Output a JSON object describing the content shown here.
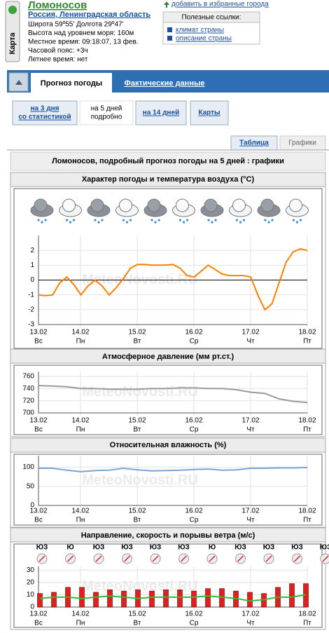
{
  "header": {
    "map_button": "Карта",
    "city": "Ломоносов",
    "region": "Россия, Ленинградская область",
    "info": [
      "Широта 59º55'  Долгота 29º47'",
      "Высота над уровнем моря: 160м",
      "Местное время: 09:18:07, 13 фев.",
      "Часовой пояс: +3ч",
      "Летнее время: нет"
    ],
    "favorites": "добавить в избранные города",
    "links": {
      "title": "Полезные ссылки:",
      "items": [
        "климат страны",
        "описание страны"
      ]
    }
  },
  "tabs": [
    "Прогноз погоды",
    "Фактические данные"
  ],
  "forecast_buttons": [
    {
      "lines": [
        "на 3 дня",
        "со статистикой"
      ]
    },
    {
      "lines": [
        "на 5 дней",
        "подробно"
      ]
    },
    {
      "lines": [
        "на 14 дней"
      ]
    },
    {
      "lines": [
        "Карты"
      ]
    }
  ],
  "view_tabs": [
    "Таблица",
    "Графики"
  ],
  "heading": "Ломоносов, подробный прогноз погоды на 5 дней : графики",
  "watermark": "MeteoNovosti.RU",
  "dates": [
    "13.02",
    "14.02",
    "15.02",
    "16.02",
    "17.02",
    "18.02"
  ],
  "weekdays": [
    "Вс",
    "Пн",
    "Вт",
    "Ср",
    "Чт",
    "Пт"
  ],
  "charts": [
    {
      "type": "line",
      "title": "Характер погоды и температура воздуха (°C)",
      "ylim": [
        -3,
        3
      ],
      "yticks": [
        -3,
        -2,
        -1,
        0,
        1,
        2
      ],
      "zero_line": true,
      "color": "#ff8000",
      "values": [
        -1.0,
        -1.05,
        -1.0,
        -0.2,
        0.2,
        -0.3,
        -1.0,
        -0.4,
        0.0,
        -0.4,
        -1.0,
        -0.5,
        0.1,
        0.8,
        1.05,
        1.05,
        1.0,
        1.0,
        1.0,
        1.05,
        0.8,
        0.3,
        0.2,
        0.6,
        1.0,
        0.7,
        0.4,
        0.3,
        0.3,
        0.3,
        0.2,
        -1.0,
        -2.0,
        -1.6,
        -0.2,
        1.2,
        1.9,
        2.1,
        2.0
      ]
    },
    {
      "type": "line",
      "title": "Атмосферное давление (мм рт.ст.)",
      "ylim": [
        700,
        768
      ],
      "yticks": [
        700,
        720,
        740,
        760
      ],
      "color": "#9a9a9a",
      "values": [
        745,
        744,
        743,
        740,
        740,
        739,
        739,
        739,
        740,
        740,
        741,
        741,
        740,
        740,
        738,
        734,
        732,
        723,
        719,
        717
      ]
    },
    {
      "type": "line",
      "title": "Относительная влажность (%)",
      "ylim": [
        0,
        130
      ],
      "yticks": [
        0,
        50,
        100
      ],
      "color": "#7ba3d4",
      "values": [
        97,
        97,
        92,
        88,
        91,
        92,
        97,
        93,
        90,
        91,
        92,
        94,
        95,
        92,
        93,
        97,
        97,
        98,
        98,
        99
      ]
    },
    {
      "type": "bar_line",
      "title": "Направление, скорость и порывы ветра (м/с)",
      "ylim": [
        0,
        33
      ],
      "yticks": [
        0,
        10,
        20,
        30
      ],
      "directions": [
        "ЮЗ",
        "Ю",
        "ЮЗ",
        "ЮЗ",
        "ЮЗ",
        "ЮЗ",
        "Ю",
        "ЮЗ",
        "ЮЗ",
        "ЮЗ",
        "ЮЗ"
      ],
      "series": [
        {
          "style": "bar",
          "color": "#e02020",
          "values": [
            11,
            12,
            16,
            16,
            12,
            14,
            13,
            14,
            13,
            14,
            14,
            13,
            15,
            15,
            13,
            12,
            11,
            16,
            19,
            19
          ]
        },
        {
          "style": "line",
          "color": "#33bb33",
          "values": [
            7,
            8,
            8,
            7,
            8,
            9,
            8,
            7,
            8,
            8,
            8,
            8,
            9,
            8,
            7,
            5,
            6,
            8,
            8,
            10
          ]
        }
      ]
    }
  ]
}
